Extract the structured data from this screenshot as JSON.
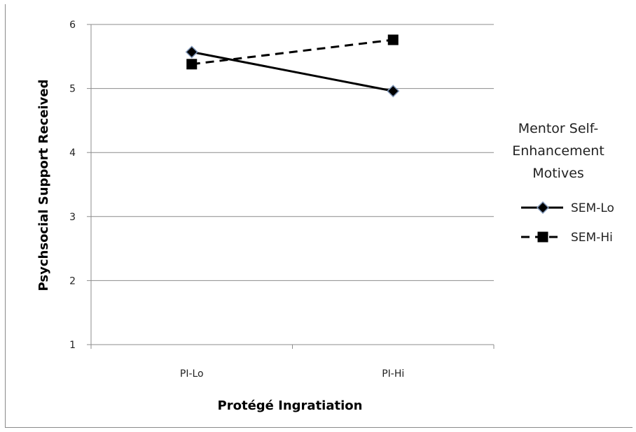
{
  "chart_data": {
    "type": "line",
    "categories": [
      "PI-Lo",
      "PI-Hi"
    ],
    "series": [
      {
        "name": "SEM-Lo",
        "values": [
          5.57,
          4.96
        ],
        "line_style": "solid",
        "marker": "diamond",
        "color": "#000000"
      },
      {
        "name": "SEM-Hi",
        "values": [
          5.38,
          5.76
        ],
        "line_style": "dashed",
        "marker": "square",
        "color": "#000000"
      }
    ],
    "xlabel": "Protégé Ingratiation",
    "ylabel": "Psychsocial Support Received",
    "ylim": [
      1,
      6
    ],
    "yticks": [
      "1",
      "2",
      "3",
      "4",
      "5",
      "6"
    ],
    "grid": true,
    "legend": {
      "title_lines": [
        "Mentor Self-",
        "Enhancement",
        "Motives"
      ],
      "placement": "right"
    }
  }
}
